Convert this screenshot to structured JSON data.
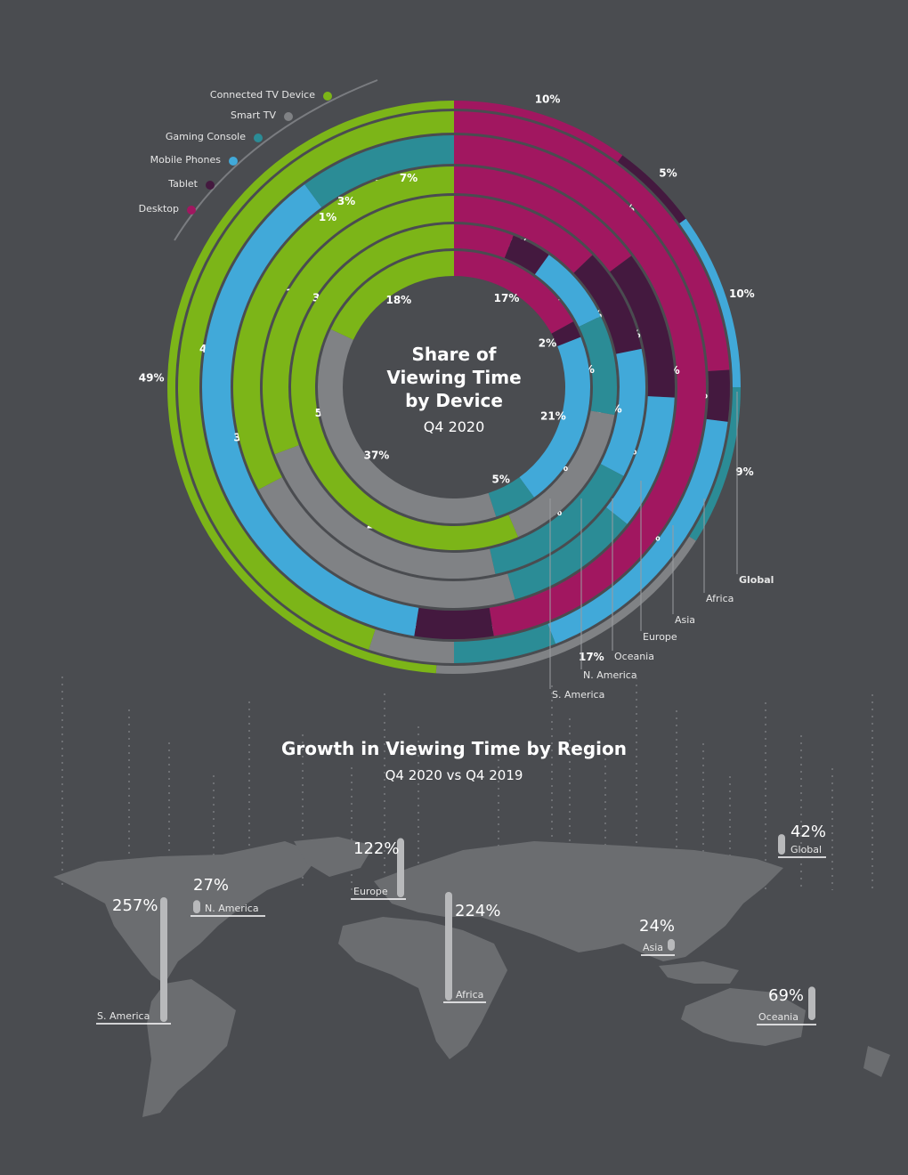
{
  "colors": {
    "Connected TV Device": "#7cb518",
    "Smart TV": "#808285",
    "Gaming Console": "#2b8c96",
    "Mobile Phones": "#41a9d9",
    "Tablet": "#44193f",
    "Desktop": "#a11760",
    "background": "#4a4c50",
    "map": "#6b6d70"
  },
  "legend": [
    "Connected TV Device",
    "Smart TV",
    "Gaming Console",
    "Mobile Phones",
    "Tablet",
    "Desktop"
  ],
  "center": {
    "title_lines": [
      "Share of",
      "Viewing Time",
      "by Device"
    ],
    "subtitle": "Q4 2020"
  },
  "chart_data": [
    {
      "type": "pie",
      "subtype": "radial-donut",
      "title": "Share of Viewing Time by Device",
      "subtitle": "Q4 2020",
      "series_order": [
        "Desktop",
        "Tablet",
        "Mobile Phones",
        "Gaming Console",
        "Smart TV",
        "Connected TV Device"
      ],
      "rings": [
        {
          "name": "Global",
          "values": {
            "Desktop": 10,
            "Tablet": 5,
            "Mobile Phones": 10,
            "Gaming Console": 9,
            "Smart TV": 17,
            "Connected TV Device": 49
          }
        },
        {
          "name": "Africa",
          "values": {
            "Desktop": 24,
            "Tablet": 3,
            "Mobile Phones": 17,
            "Gaming Console": 6,
            "Smart TV": 5,
            "Connected TV Device": 45
          }
        },
        {
          "name": "Asia",
          "values": {
            "Desktop": 47,
            "Tablet": 5,
            "Mobile Phones": 37,
            "Gaming Console": 10,
            "Smart TV": 0,
            "Connected TV Device": 0
          }
        },
        {
          "name": "Europe",
          "values": {
            "Desktop": 15,
            "Tablet": 11,
            "Mobile Phones": 10,
            "Gaming Console": 10,
            "Smart TV": 22,
            "Connected TV Device": 33
          }
        },
        {
          "name": "Oceania",
          "values": {
            "Desktop": 13,
            "Tablet": 9,
            "Mobile Phones": 11,
            "Gaming Console": 14,
            "Smart TV": 23,
            "Connected TV Device": 31
          }
        },
        {
          "name": "N. America",
          "values": {
            "Desktop": 6,
            "Tablet": 4,
            "Mobile Phones": 8,
            "Gaming Console": 10,
            "Smart TV": 16,
            "Connected TV Device": 57
          }
        },
        {
          "name": "S. America",
          "values": {
            "Desktop": 17,
            "Tablet": 2,
            "Mobile Phones": 21,
            "Gaming Console": 5,
            "Smart TV": 37,
            "Connected TV Device": 18
          }
        }
      ],
      "extra_labels": [
        "3%",
        "7%",
        "1%"
      ]
    },
    {
      "type": "bar",
      "title": "Growth in Viewing Time by Region",
      "subtitle": "Q4 2020 vs Q4 2019",
      "categories": [
        "Global",
        "N. America",
        "S. America",
        "Europe",
        "Africa",
        "Asia",
        "Oceania"
      ],
      "values": [
        42,
        27,
        257,
        122,
        224,
        24,
        69
      ],
      "labels": [
        "42%",
        "27%",
        "257%",
        "122%",
        "224%",
        "24%",
        "69%"
      ]
    }
  ]
}
